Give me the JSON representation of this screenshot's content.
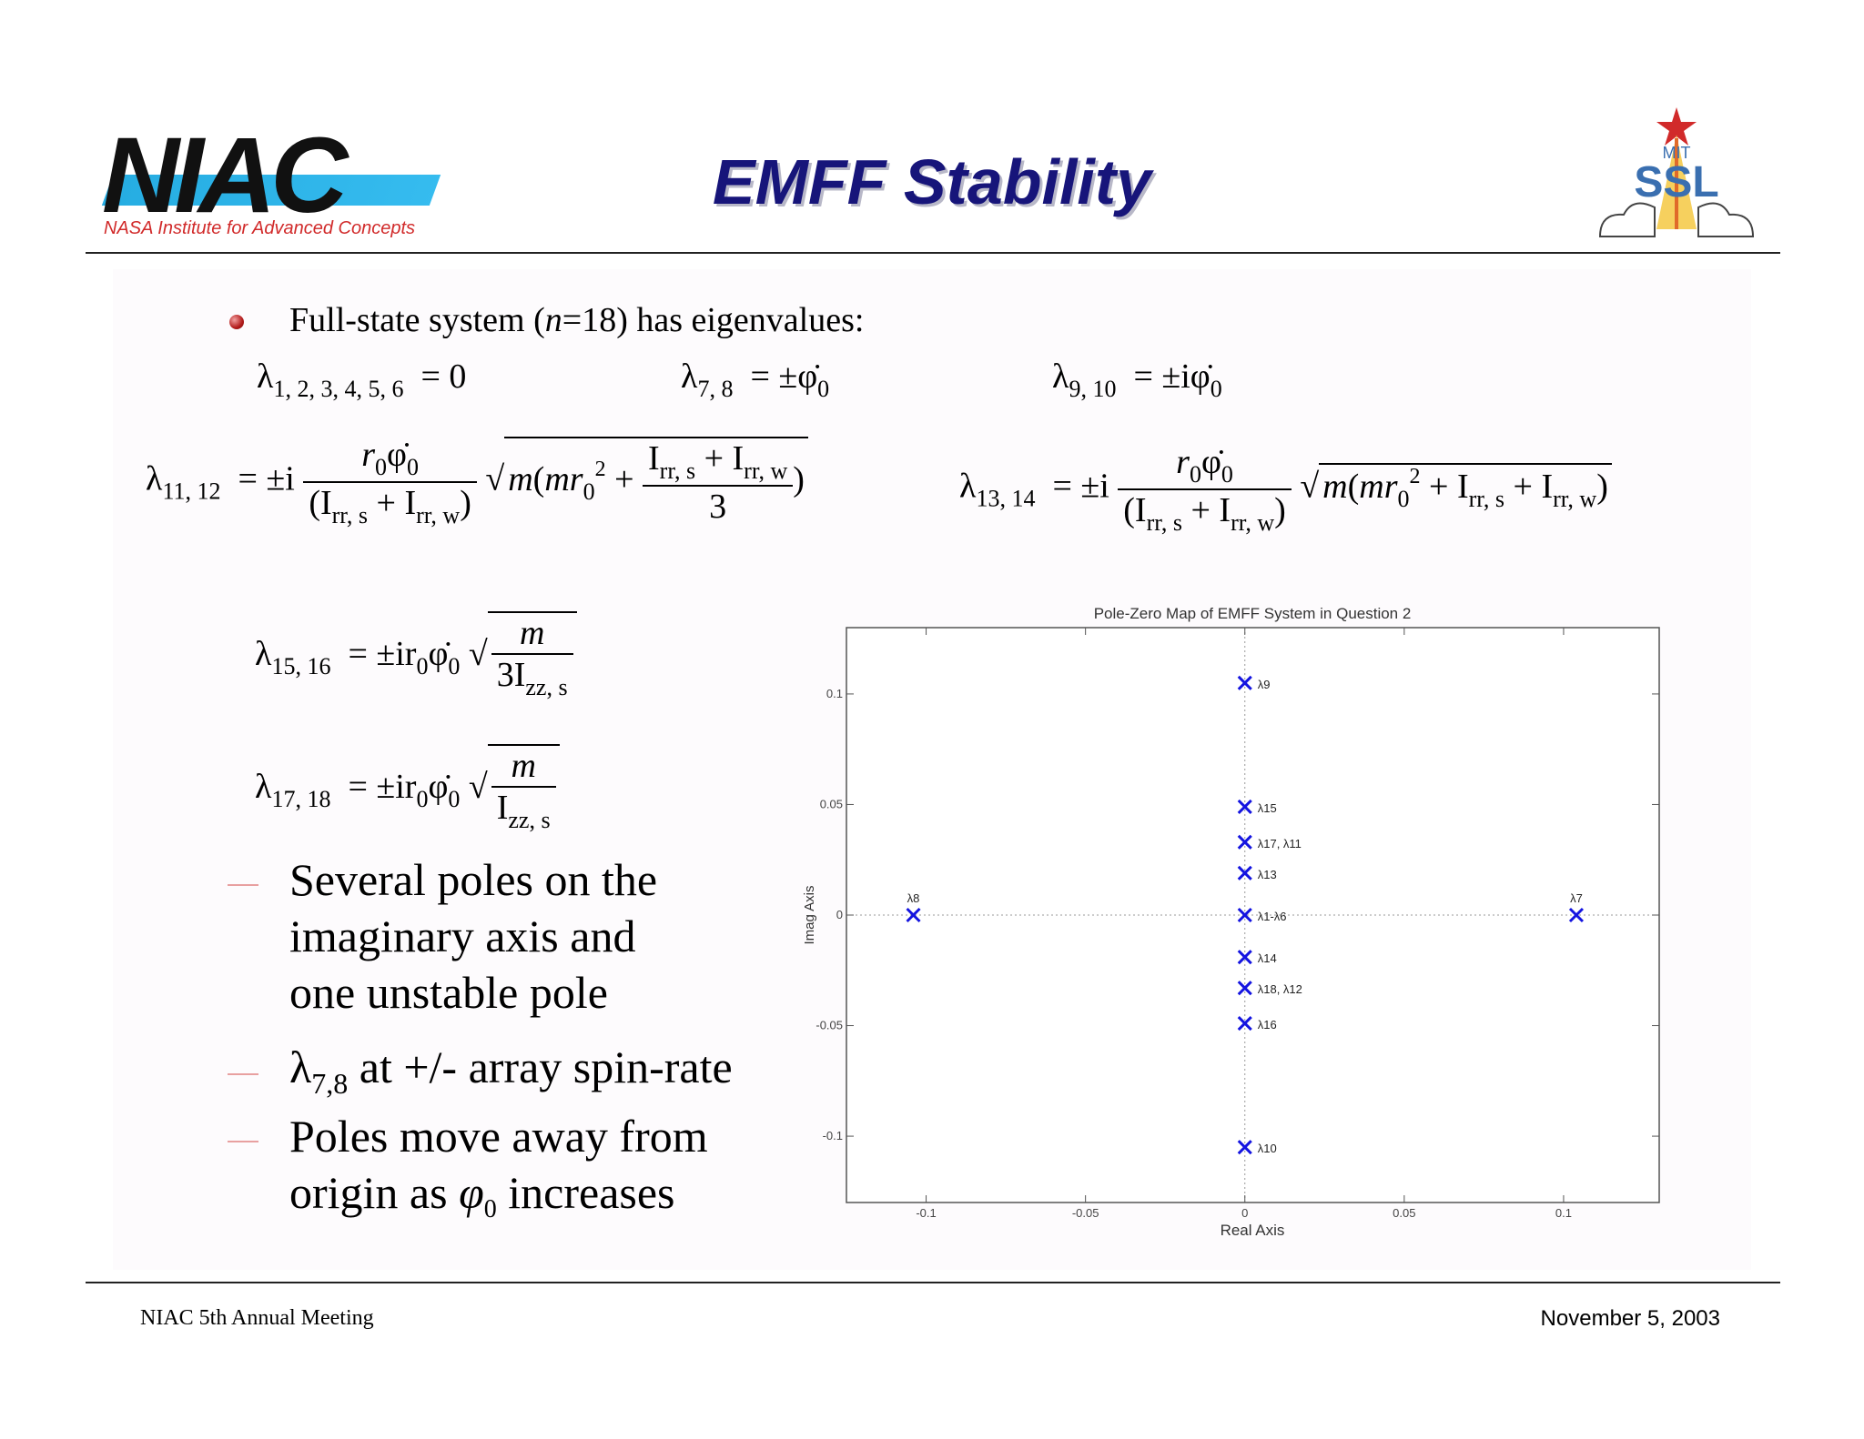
{
  "header": {
    "logo_left_text": "NIAC",
    "logo_left_tagline": "NASA Institute for Advanced Concepts",
    "title": "EMFF Stability",
    "logo_right_text": "SSL",
    "logo_right_small": "MIT",
    "title_color": "#17157a",
    "accent_blue": "#1aa8e0",
    "accent_red": "#d12a2a"
  },
  "bullet": {
    "text_pre": "Full-state system (",
    "text_var": "n",
    "text_post": "=18) has eigenvalues:"
  },
  "equations": {
    "l1_6_lhs": "λ",
    "l1_6_sub": "1, 2, 3, 4, 5, 6",
    "l1_6_rhs": "=  0",
    "l7_8_sub": "7, 8",
    "l7_8_rhs": "=  ±φ̇",
    "l9_10_sub": "9, 10",
    "l9_10_rhs": "=  ±iφ̇",
    "l11_12_sub": "11, 12",
    "l13_14_sub": "13, 14",
    "l15_16_sub": "15, 16",
    "l17_18_sub": "17, 18",
    "zero_sub": "0",
    "m": "m",
    "three": "3",
    "frac_num": "r",
    "frac_den_a": "(I",
    "frac_den_b": "rr, s",
    "frac_den_c": " + I",
    "frac_den_d": "rr, w",
    "frac_den_e": ")",
    "pm_i": "=  ±i",
    "pm_ir": "=  ±ir",
    "izz": "I",
    "izz_sub": "zz, s",
    "three_izz": "3I",
    "sq": "2"
  },
  "dashes": [
    {
      "lines": [
        "Several poles on the",
        "imaginary axis and",
        "one unstable pole"
      ]
    },
    {
      "pre": "λ",
      "sub": "7,8",
      "post": " at +/- array spin-rate"
    },
    {
      "lines": [
        "Poles move away from"
      ],
      "line2_pre": "origin as ",
      "line2_sym": "φ",
      "line2_sub": "0",
      "line2_post": "  increases"
    }
  ],
  "footer": {
    "left": "NIAC 5th Annual Meeting",
    "right": "November 5, 2003"
  },
  "chart_data": {
    "type": "scatter",
    "title": "Pole-Zero Map of EMFF System in Question 2",
    "xlabel": "Real Axis",
    "ylabel": "Imag Axis",
    "xlim": [
      -0.125,
      0.13
    ],
    "ylim": [
      -0.13,
      0.13
    ],
    "xticks": [
      -0.1,
      -0.05,
      0,
      0.05,
      0.1
    ],
    "xtick_labels": [
      "-0.1",
      "-0.05",
      "0",
      "0.05",
      "0.1"
    ],
    "yticks": [
      -0.1,
      -0.05,
      0,
      0.05,
      0.1
    ],
    "ytick_labels": [
      "-0.1",
      "-0.05",
      "0",
      "0.05",
      "0.1"
    ],
    "marker": "x",
    "marker_color": "#1414e0",
    "points": [
      {
        "x": 0,
        "y": 0.105,
        "label": "λ9"
      },
      {
        "x": 0,
        "y": 0.049,
        "label": "λ15"
      },
      {
        "x": 0,
        "y": 0.033,
        "label": "λ17, λ11"
      },
      {
        "x": 0,
        "y": 0.019,
        "label": "λ13"
      },
      {
        "x": 0,
        "y": 0,
        "label": "λ1-λ6"
      },
      {
        "x": 0,
        "y": -0.019,
        "label": "λ14"
      },
      {
        "x": 0,
        "y": -0.033,
        "label": "λ18, λ12"
      },
      {
        "x": 0,
        "y": -0.049,
        "label": "λ16"
      },
      {
        "x": 0,
        "y": -0.105,
        "label": "λ10"
      },
      {
        "x": -0.104,
        "y": 0,
        "label": "λ8"
      },
      {
        "x": 0.104,
        "y": 0,
        "label": "λ7"
      }
    ]
  }
}
